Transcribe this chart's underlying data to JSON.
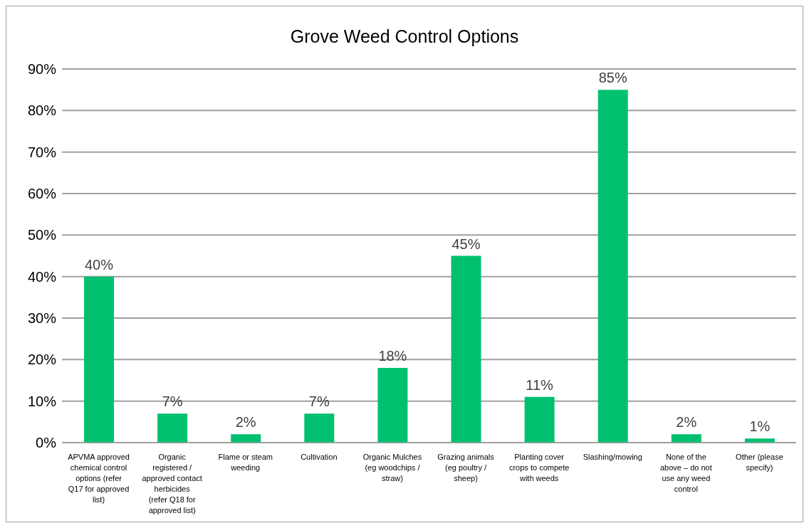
{
  "chart_data": {
    "type": "bar",
    "title": "Grove Weed Control Options",
    "categories": [
      "APVMA approved chemical control options (refer Q17 for approved list)",
      "Organic registered / approved contact herbicides (refer Q18 for approved list)",
      "Flame or steam weeding",
      "Cultivation",
      "Organic Mulches (eg woodchips / straw)",
      "Grazing animals (eg poultry / sheep)",
      "Planting cover crops to compete with weeds",
      "Slashing/mowing",
      "None of the above – do not use any weed control",
      "Other (please specify)"
    ],
    "values": [
      40,
      7,
      2,
      7,
      18,
      45,
      11,
      85,
      2,
      1
    ],
    "value_labels": [
      "40%",
      "7%",
      "2%",
      "7%",
      "18%",
      "45%",
      "11%",
      "85%",
      "2%",
      "1%"
    ],
    "color": "#00c070",
    "ylim": [
      0,
      90
    ],
    "yticks": [
      {
        "value": 0,
        "label": "0%"
      },
      {
        "value": 10,
        "label": "10%"
      },
      {
        "value": 20,
        "label": "20%"
      },
      {
        "value": 30,
        "label": "30%"
      },
      {
        "value": 40,
        "label": "40%"
      },
      {
        "value": 50,
        "label": "50%"
      },
      {
        "value": 60,
        "label": "60%"
      },
      {
        "value": 70,
        "label": "70%"
      },
      {
        "value": 80,
        "label": "80%"
      },
      {
        "value": 90,
        "label": "90%"
      }
    ],
    "grid": "y",
    "legend": false
  }
}
